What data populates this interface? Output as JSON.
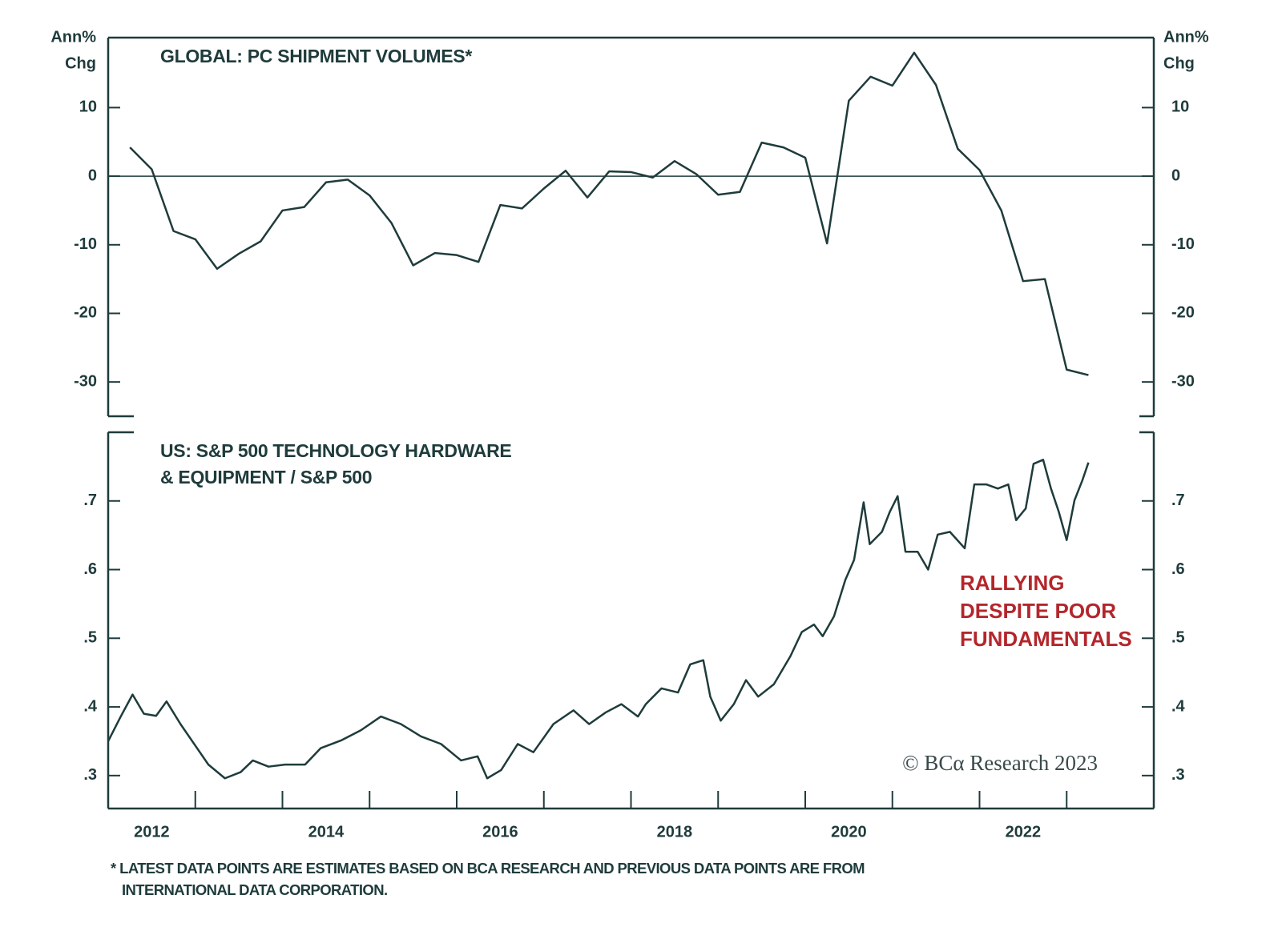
{
  "chart_data": [
    {
      "type": "line",
      "title_lines": [
        "GLOBAL: PC SHIPMENT VOLUMES*"
      ],
      "y_label_lines": [
        "Ann%",
        "Chg"
      ],
      "xlim": [
        2012,
        2024
      ],
      "ylim": [
        -35,
        20.2
      ],
      "yticks": [
        10,
        0,
        -10,
        -20,
        -30
      ],
      "zero_line": true,
      "series": [
        {
          "color": "#1f3b3b",
          "x": [
            2012.25,
            2012.5,
            2012.75,
            2013,
            2013.25,
            2013.5,
            2013.75,
            2014,
            2014.25,
            2014.5,
            2014.75,
            2015,
            2015.25,
            2015.5,
            2015.75,
            2016,
            2016.25,
            2016.5,
            2016.75,
            2017,
            2017.25,
            2017.5,
            2017.75,
            2018,
            2018.25,
            2018.5,
            2018.75,
            2019,
            2019.25,
            2019.5,
            2019.75,
            2020,
            2020.25,
            2020.5,
            2020.75,
            2021,
            2021.25,
            2021.5,
            2021.75,
            2022,
            2022.25,
            2022.5,
            2022.75,
            2023,
            2023.25
          ],
          "values": [
            4.2,
            1,
            -8,
            -9.2,
            -13.5,
            -11.3,
            -9.5,
            -5,
            -4.5,
            -0.9,
            -0.5,
            -2.8,
            -6.8,
            -13,
            -11.2,
            -11.5,
            -12.5,
            -4.2,
            -4.7,
            -1.8,
            0.8,
            -3.1,
            0.7,
            0.6,
            -0.2,
            2.2,
            0.3,
            -2.7,
            -2.3,
            4.9,
            4.2,
            2.7,
            -9.8,
            11,
            14.5,
            13.2,
            18,
            13.3,
            4,
            0.9,
            -5,
            -15.3,
            -15,
            -28.2,
            -29
          ]
        }
      ]
    },
    {
      "type": "line",
      "title_lines": [
        "US: S&P 500 TECHNOLOGY HARDWARE",
        "& EQUIPMENT / S&P 500"
      ],
      "xlim": [
        2012,
        2024
      ],
      "ylim": [
        0.252,
        0.8
      ],
      "yticks": [
        {
          "value": 0.7,
          "label": ".7"
        },
        {
          "value": 0.6,
          "label": ".6"
        },
        {
          "value": 0.5,
          "label": ".5"
        },
        {
          "value": 0.4,
          "label": ".4"
        },
        {
          "value": 0.3,
          "label": ".3"
        }
      ],
      "xticks": [
        2013,
        2014,
        2015,
        2016,
        2017,
        2018,
        2019,
        2020,
        2021,
        2022,
        2023
      ],
      "xtick_labels": [
        {
          "value": 2012.5,
          "label": "2012"
        },
        {
          "value": 2014.5,
          "label": "2014"
        },
        {
          "value": 2016.5,
          "label": "2016"
        },
        {
          "value": 2018.5,
          "label": "2018"
        },
        {
          "value": 2020.5,
          "label": "2020"
        },
        {
          "value": 2022.5,
          "label": "2022"
        }
      ],
      "annotation_lines": [
        "RALLYING",
        "DESPITE POOR",
        "FUNDAMENTALS"
      ],
      "annotation_color": "#b3262b",
      "source": "© BCα Research 2023",
      "series": [
        {
          "color": "#1f3b3b",
          "x": [
            2012.0,
            2012.14,
            2012.28,
            2012.41,
            2012.55,
            2012.67,
            2012.83,
            2013.02,
            2013.15,
            2013.34,
            2013.52,
            2013.66,
            2013.84,
            2014.03,
            2014.26,
            2014.44,
            2014.67,
            2014.9,
            2015.13,
            2015.36,
            2015.59,
            2015.82,
            2016.05,
            2016.24,
            2016.35,
            2016.51,
            2016.7,
            2016.88,
            2017.11,
            2017.34,
            2017.52,
            2017.71,
            2017.89,
            2018.08,
            2018.17,
            2018.35,
            2018.54,
            2018.68,
            2018.83,
            2018.91,
            2019.03,
            2019.18,
            2019.32,
            2019.46,
            2019.64,
            2019.83,
            2019.96,
            2020.1,
            2020.2,
            2020.33,
            2020.46,
            2020.56,
            2020.67,
            2020.74,
            2020.88,
            2020.97,
            2021.06,
            2021.15,
            2021.29,
            2021.41,
            2021.52,
            2021.66,
            2021.83,
            2021.94,
            2022.08,
            2022.21,
            2022.33,
            2022.42,
            2022.53,
            2022.62,
            2022.73,
            2022.82,
            2022.91,
            2023.0,
            2023.09,
            2023.18,
            2023.25
          ],
          "values": [
            0.35,
            0.385,
            0.418,
            0.39,
            0.387,
            0.408,
            0.375,
            0.34,
            0.316,
            0.296,
            0.305,
            0.322,
            0.313,
            0.316,
            0.316,
            0.34,
            0.351,
            0.366,
            0.386,
            0.375,
            0.357,
            0.346,
            0.322,
            0.328,
            0.296,
            0.308,
            0.346,
            0.334,
            0.375,
            0.395,
            0.375,
            0.392,
            0.404,
            0.386,
            0.404,
            0.427,
            0.421,
            0.462,
            0.468,
            0.415,
            0.38,
            0.404,
            0.439,
            0.415,
            0.433,
            0.474,
            0.509,
            0.52,
            0.503,
            0.532,
            0.585,
            0.614,
            0.698,
            0.637,
            0.655,
            0.684,
            0.707,
            0.626,
            0.626,
            0.6,
            0.651,
            0.655,
            0.631,
            0.724,
            0.724,
            0.718,
            0.724,
            0.672,
            0.689,
            0.754,
            0.76,
            0.718,
            0.684,
            0.643,
            0.701,
            0.73,
            0.756
          ]
        }
      ]
    }
  ],
  "footnote_lines": [
    "* LATEST DATA POINTS ARE ESTIMATES BASED ON BCA RESEARCH AND PREVIOUS DATA POINTS ARE FROM",
    "INTERNATIONAL DATA CORPORATION."
  ]
}
